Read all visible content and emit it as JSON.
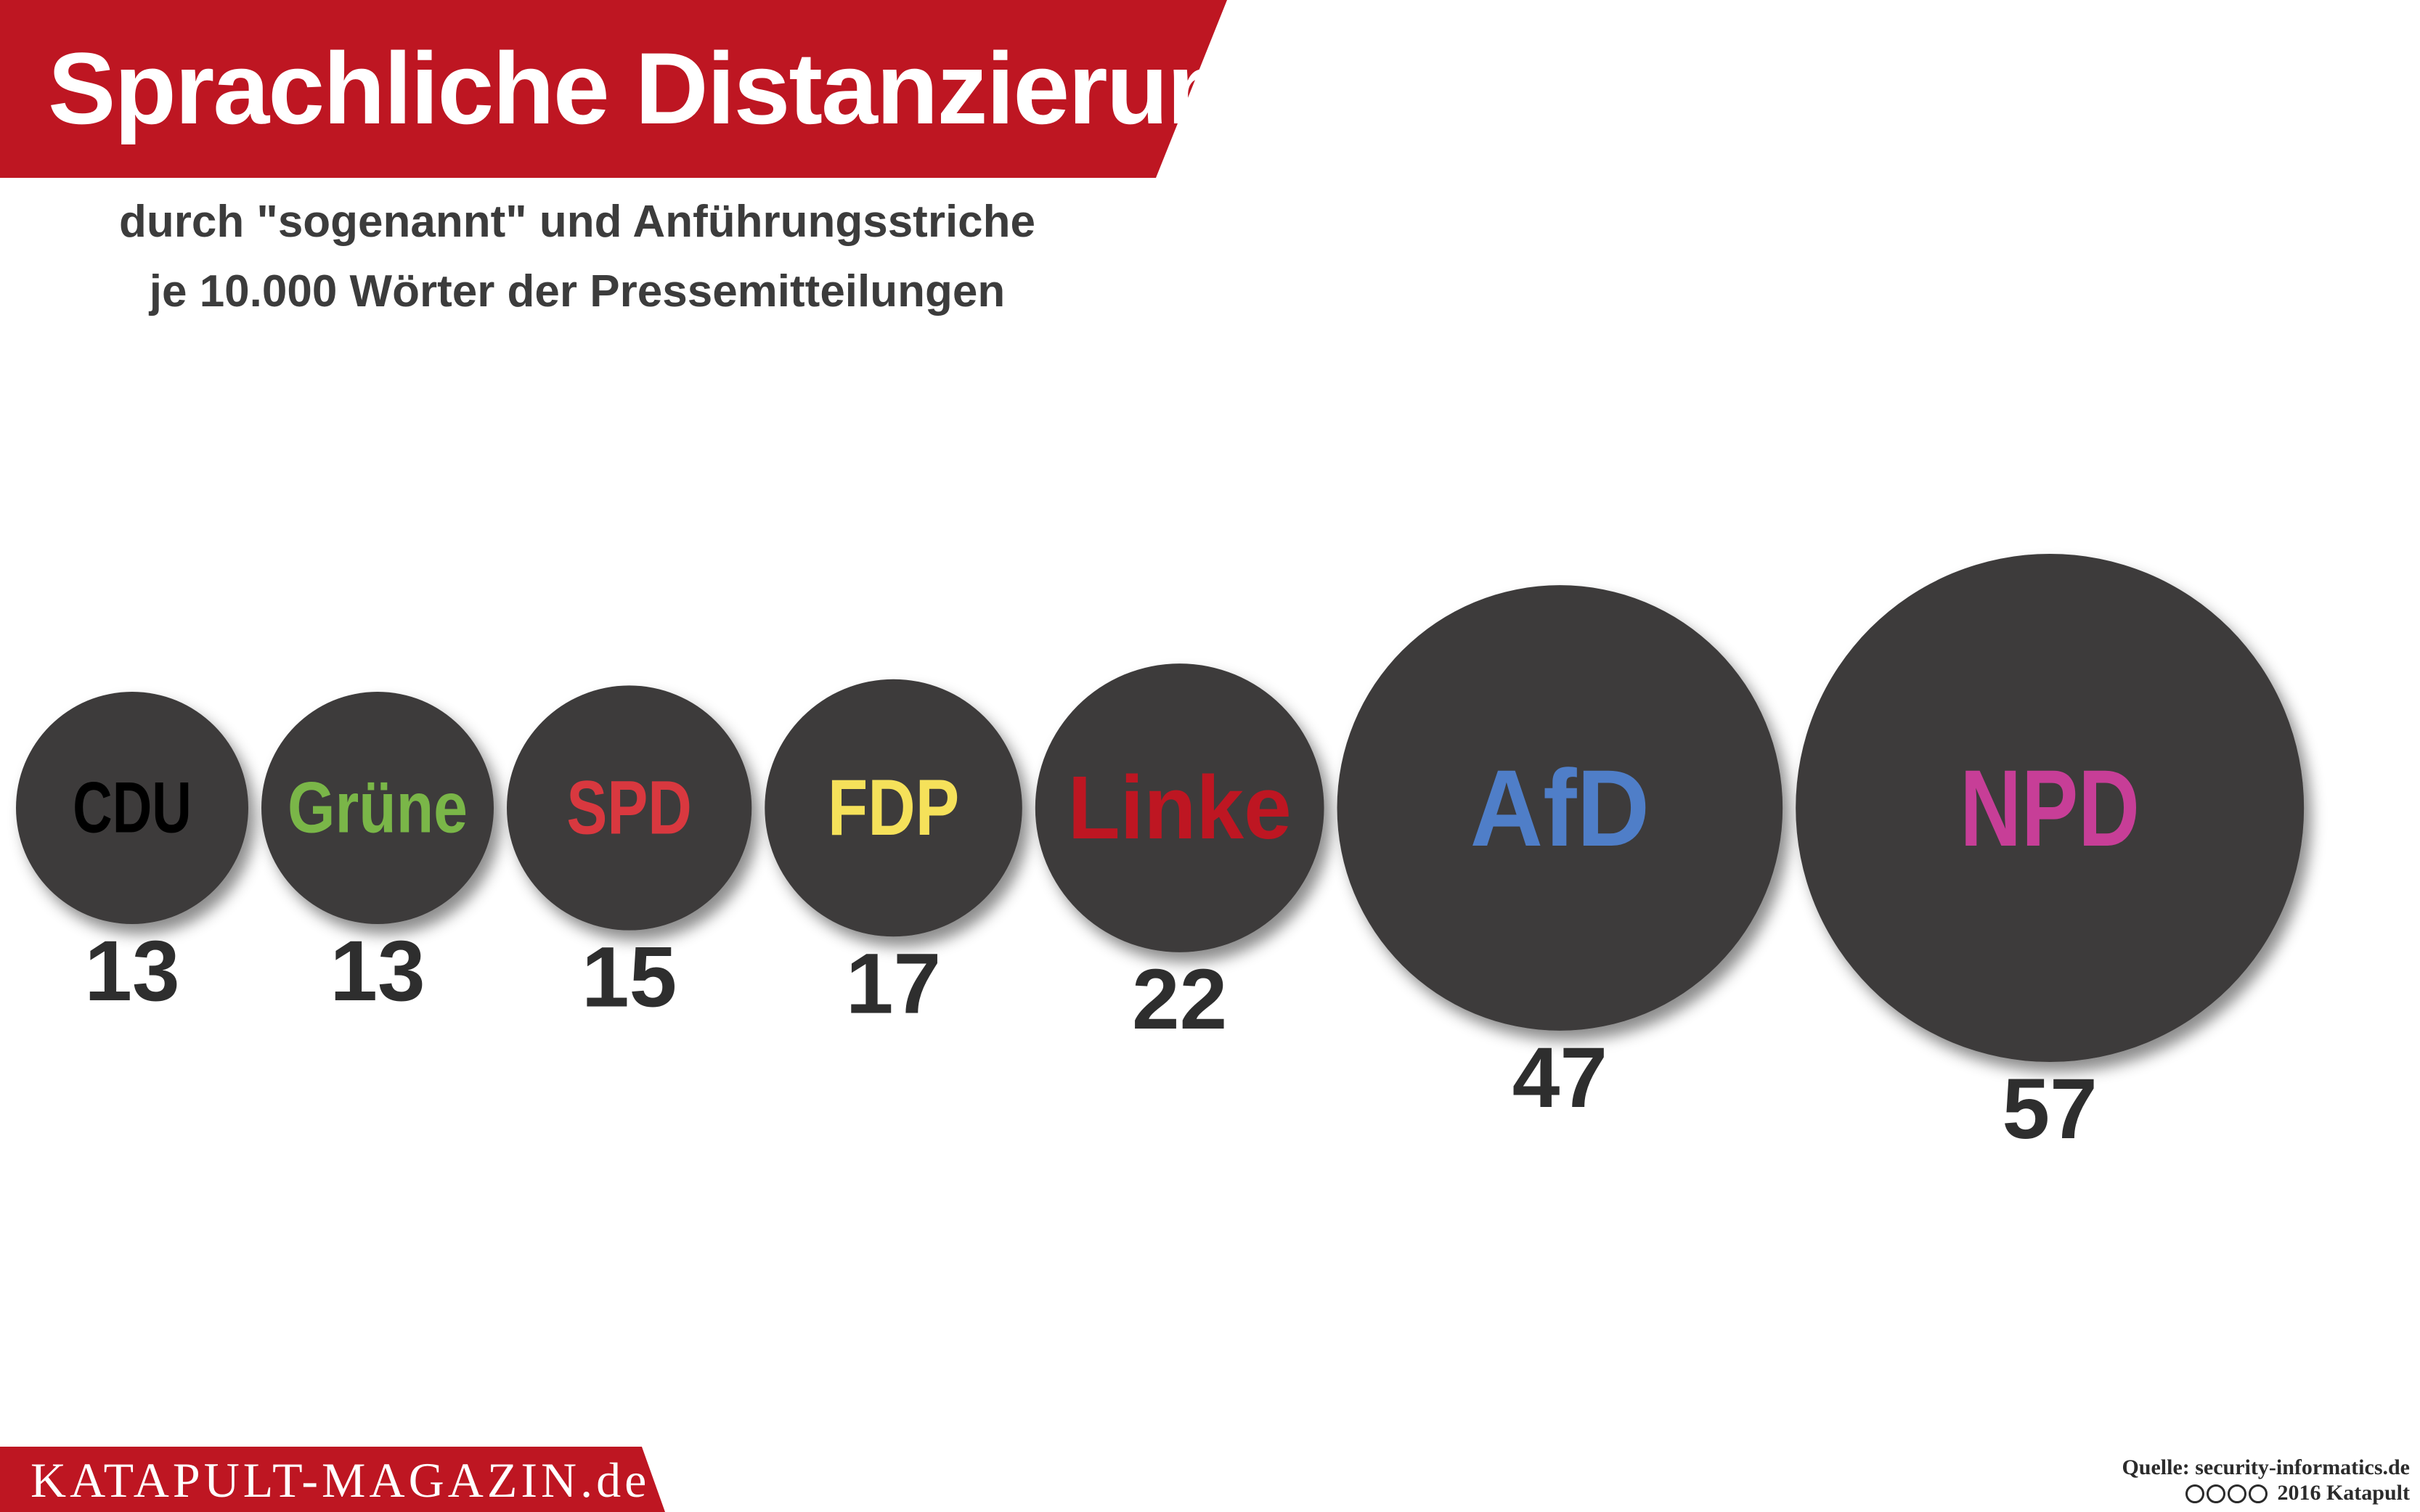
{
  "header": {
    "title": "Sprachliche Distanzierung",
    "subtitle_line1": "durch \"sogenannt\" und Anführungsstriche",
    "subtitle_line2": "je 10.000 Wörter der Pressemitteilungen"
  },
  "chart_data": {
    "type": "bubble",
    "title": "Sprachliche Distanzierung",
    "subtitle": "durch \"sogenannt\" und Anführungsstriche je 10.000 Wörter der Pressemitteilungen",
    "categories": [
      "CDU",
      "Grüne",
      "SPD",
      "FDP",
      "Linke",
      "AfD",
      "NPD"
    ],
    "values": [
      13,
      13,
      15,
      17,
      22,
      47,
      57
    ],
    "label_colors": [
      "#000000",
      "#7ab648",
      "#d9383f",
      "#f5e15a",
      "#be1622",
      "#4f7ec8",
      "#c73e97"
    ],
    "bubble_color": "#3d3a3a"
  },
  "footer": {
    "brand": "KATAPULT-MAGAZIN.de",
    "source": "Quelle: security-informatics.de",
    "copyright": "2016 Katapult",
    "license_icons": [
      "cc-icon",
      "by-icon",
      "nc-icon",
      "nd-icon"
    ]
  }
}
